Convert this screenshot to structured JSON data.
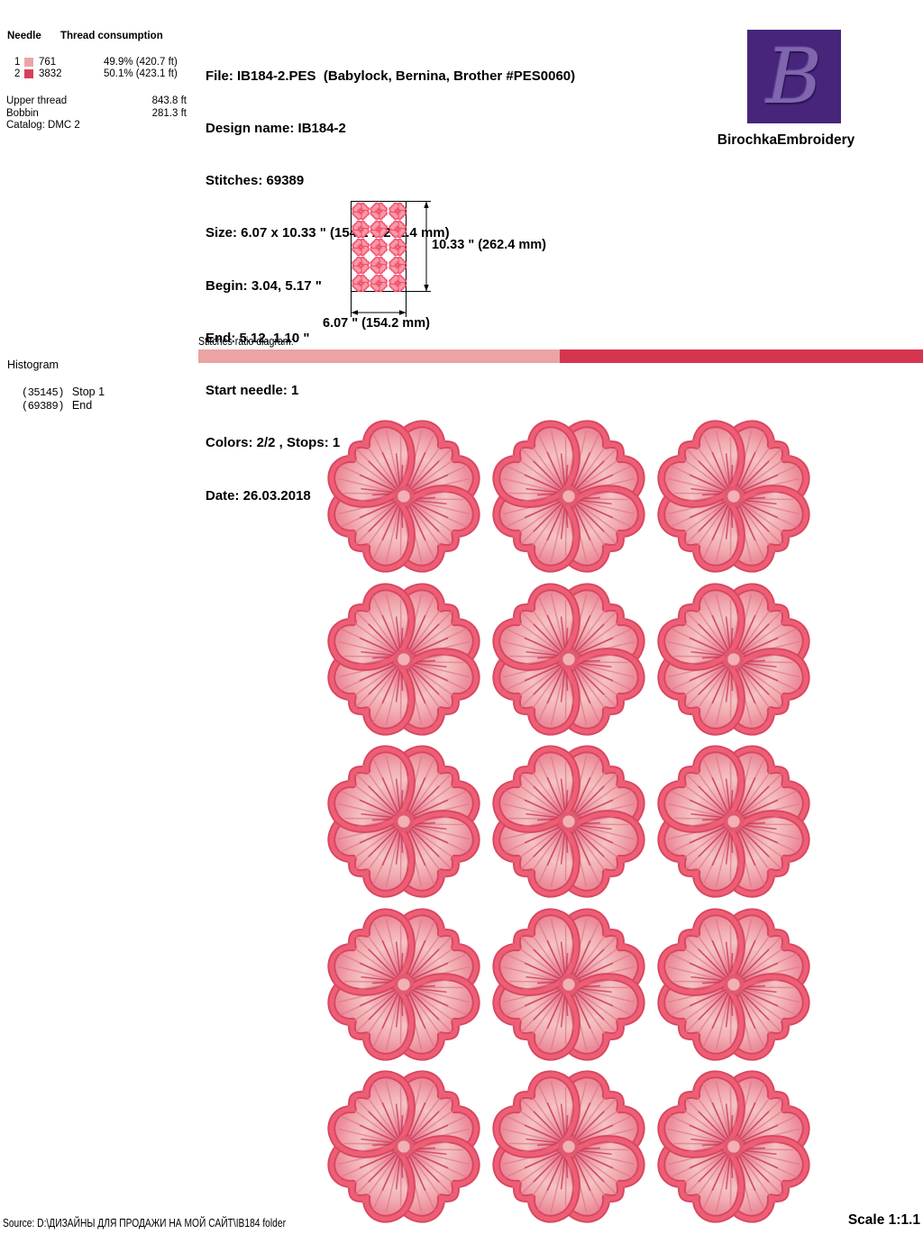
{
  "thread_table": {
    "col1_header": "Needle",
    "col2_header": "Thread consumption",
    "rows": [
      {
        "needle": "1",
        "color": "#eca4a6",
        "code": "761",
        "consumption": "49.9% (420.7 ft)",
        "pct": 49.9
      },
      {
        "needle": "2",
        "color": "#d64059",
        "code": "3832",
        "consumption": "50.1% (423.1 ft)",
        "pct": 50.1
      }
    ],
    "upper_thread_label": "Upper thread",
    "upper_thread_value": "843.8 ft",
    "bobbin_label": "Bobbin",
    "bobbin_value": "281.3 ft",
    "catalog_label": "Catalog: DMC 2"
  },
  "file_info": {
    "lines": [
      "File: IB184-2.PES  (Babylock, Bernina, Brother #PES0060)",
      "Design name: IB184-2",
      "Stitches: 69389",
      "Size: 6.07 x 10.33 \" (154.2 x 262.4 mm)",
      "Begin: 3.04, 5.17 \"",
      "End: 5.12, 1.10 \"",
      "Start needle: 1",
      "Colors: 2/2 , Stops: 1",
      "Date: 26.03.2018"
    ]
  },
  "brand": {
    "logo_letter": "B",
    "name": "BirochkaEmbroidery",
    "logo_bg": "#46257b",
    "logo_fg": "#8066ae"
  },
  "preview": {
    "height_label": "10.33 \" (262.4 mm)",
    "width_label": "6.07 \" (154.2 mm)",
    "grid": {
      "rows": 5,
      "cols": 3
    }
  },
  "ratio": {
    "label": "Stitches ratio diagram:",
    "segments": [
      {
        "color": "#eba3a4",
        "pct": 49.9
      },
      {
        "color": "#d63550",
        "pct": 50.1
      }
    ]
  },
  "histogram": {
    "title": "Histogram",
    "entries": [
      {
        "count": "(35145)",
        "label": "Stop 1"
      },
      {
        "count": "(69389)",
        "label": "End"
      }
    ]
  },
  "design": {
    "flower_grid": {
      "rows": 5,
      "cols": 3
    },
    "palette": {
      "border": "#e8556e",
      "border_dark": "#d84862",
      "fill_light": "#f4c3c3",
      "fill_mid": "#ee8c9b",
      "fill_dark": "#db5570"
    }
  },
  "footer": {
    "source": "Source: D:\\ДИЗАЙНЫ ДЛЯ ПРОДАЖИ НА МОЙ САЙТ\\IB184 folder",
    "scale": "Scale 1:1.1"
  }
}
